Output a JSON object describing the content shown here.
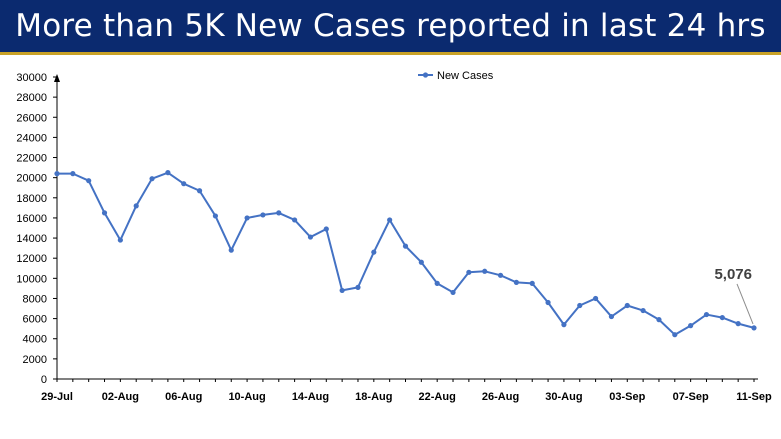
{
  "title": "More than 5K New Cases reported in last 24 hrs",
  "colors": {
    "title_bg": "#0b2a6f",
    "title_rule": "#c9a227",
    "series": "#4472c4",
    "annotation": "#404040"
  },
  "chart_data": {
    "type": "line",
    "title": "",
    "xlabel": "",
    "ylabel": "",
    "ylim": [
      0,
      30000
    ],
    "yticks": [
      0,
      2000,
      4000,
      6000,
      8000,
      10000,
      12000,
      14000,
      16000,
      18000,
      20000,
      22000,
      24000,
      26000,
      28000,
      30000
    ],
    "x_tick_labels": [
      "29-Jul",
      "02-Aug",
      "06-Aug",
      "10-Aug",
      "14-Aug",
      "18-Aug",
      "22-Aug",
      "26-Aug",
      "30-Aug",
      "03-Sep",
      "07-Sep",
      "11-Sep"
    ],
    "x_tick_every": 4,
    "legend": {
      "position": "top-center",
      "entries": [
        "New Cases"
      ]
    },
    "grid": false,
    "series": [
      {
        "name": "New Cases",
        "x": [
          "29-Jul",
          "30-Jul",
          "31-Jul",
          "01-Aug",
          "02-Aug",
          "03-Aug",
          "04-Aug",
          "05-Aug",
          "06-Aug",
          "07-Aug",
          "08-Aug",
          "09-Aug",
          "10-Aug",
          "11-Aug",
          "12-Aug",
          "13-Aug",
          "14-Aug",
          "15-Aug",
          "16-Aug",
          "17-Aug",
          "18-Aug",
          "19-Aug",
          "20-Aug",
          "21-Aug",
          "22-Aug",
          "23-Aug",
          "24-Aug",
          "25-Aug",
          "26-Aug",
          "27-Aug",
          "28-Aug",
          "29-Aug",
          "30-Aug",
          "31-Aug",
          "01-Sep",
          "02-Sep",
          "03-Sep",
          "04-Sep",
          "05-Sep",
          "06-Sep",
          "07-Sep",
          "08-Sep",
          "09-Sep",
          "10-Sep",
          "11-Sep"
        ],
        "values": [
          20400,
          20400,
          19700,
          16500,
          13800,
          17200,
          19900,
          20500,
          19400,
          18700,
          16200,
          12800,
          16000,
          16300,
          16500,
          15800,
          14100,
          14900,
          8800,
          9100,
          12600,
          15800,
          13200,
          11600,
          9500,
          8600,
          10600,
          10700,
          10300,
          9600,
          9500,
          7600,
          5400,
          7300,
          8000,
          6200,
          7300,
          6800,
          5900,
          4400,
          5300,
          6400,
          6100,
          5500,
          5076
        ]
      }
    ],
    "annotations": [
      {
        "text": "5,076",
        "x": "11-Sep",
        "y": 5076
      }
    ]
  }
}
